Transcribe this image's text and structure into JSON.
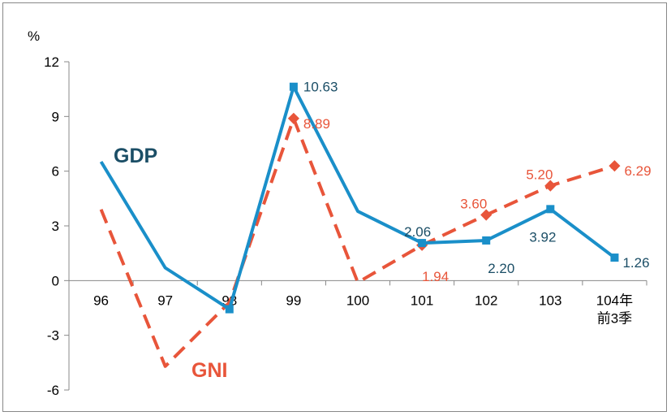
{
  "chart_data": {
    "type": "line",
    "ylabel": "%",
    "ylim": [
      -6,
      12
    ],
    "yticks": [
      12,
      9,
      6,
      3,
      0,
      -3,
      -6
    ],
    "categories": [
      "96",
      "97",
      "98",
      "99",
      "100",
      "101",
      "102",
      "103",
      "104年\n前3季"
    ],
    "series": [
      {
        "name": "GDP",
        "values": [
          6.52,
          0.7,
          -1.57,
          10.63,
          3.8,
          2.06,
          2.2,
          3.92,
          1.26
        ],
        "color": "#1a8fc9",
        "style": "solid",
        "label_color": "#1b4e66",
        "labels": [
          null,
          null,
          null,
          "10.63",
          null,
          "2.06",
          "2.20",
          "3.92",
          "1.26"
        ]
      },
      {
        "name": "GNI",
        "values": [
          3.9,
          -4.7,
          -1.2,
          8.89,
          -0.1,
          1.94,
          3.6,
          5.2,
          6.29
        ],
        "color": "#e8553a",
        "style": "dashed",
        "label_color": "#e8553a",
        "labels": [
          null,
          null,
          null,
          "8.89",
          null,
          "1.94",
          "3.60",
          "5.20",
          "6.29"
        ]
      }
    ]
  }
}
